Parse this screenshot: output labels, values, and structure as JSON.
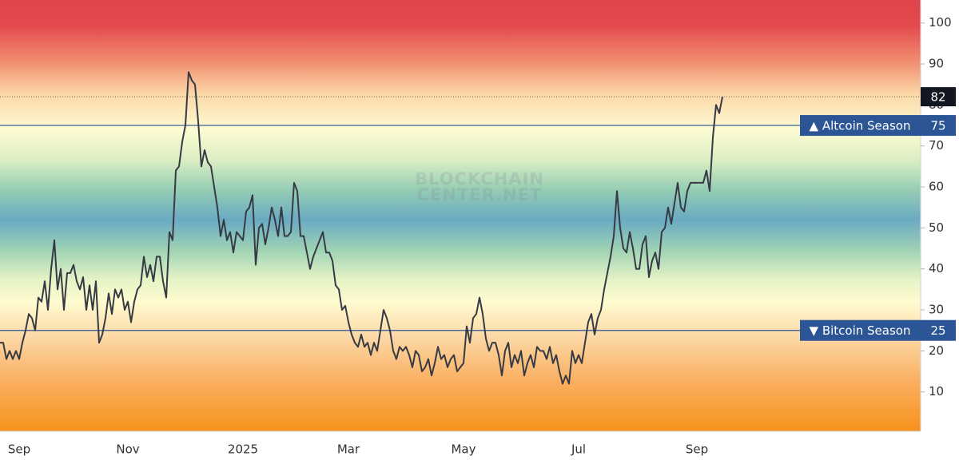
{
  "chart_data": {
    "type": "line",
    "categories": [
      null,
      null,
      null,
      null,
      null,
      null,
      "Sep",
      null,
      null,
      null,
      null,
      null,
      null,
      null,
      null,
      null,
      null,
      null,
      null,
      null,
      null,
      null,
      null,
      null,
      null,
      null,
      null,
      null,
      null,
      null,
      null,
      null,
      null,
      null,
      null,
      null,
      null,
      null,
      null,
      null,
      "Nov",
      null,
      null,
      null,
      null,
      null,
      null,
      null,
      null,
      null,
      null,
      null,
      null,
      null,
      null,
      null,
      null,
      null,
      null,
      null,
      null,
      null,
      null,
      null,
      null,
      null,
      null,
      null,
      null,
      null,
      null,
      null,
      null,
      null,
      null,
      null,
      "2025",
      null,
      null,
      null,
      null,
      null,
      null,
      null,
      null,
      null,
      null,
      null,
      null,
      null,
      null,
      null,
      null,
      null,
      null,
      null,
      null,
      null,
      null,
      null,
      null,
      null,
      null,
      null,
      null,
      null,
      null,
      null,
      null,
      "Mar",
      null,
      null,
      null,
      null,
      null,
      null,
      null,
      null,
      null,
      null,
      null,
      null,
      null,
      null,
      null,
      null,
      null,
      null,
      null,
      null,
      null,
      null,
      null,
      null,
      null,
      null,
      null,
      null,
      null,
      null,
      null,
      null,
      null,
      null,
      null,
      "May",
      null,
      null,
      null,
      null,
      null,
      null,
      null,
      null,
      null,
      null,
      null,
      null,
      null,
      null,
      null,
      null,
      null,
      null,
      null,
      null,
      null,
      null,
      null,
      null,
      null,
      null,
      null,
      null,
      null,
      null,
      null,
      null,
      null,
      null,
      null,
      "Jul",
      null,
      null,
      null,
      null,
      null,
      null,
      null,
      null,
      null,
      null,
      null,
      null,
      null,
      null,
      null,
      null,
      null,
      null,
      null,
      null,
      null,
      null,
      null,
      null,
      null,
      null,
      null,
      null,
      null,
      null,
      null,
      null,
      null,
      null,
      null,
      null,
      "Sep",
      null,
      null,
      null,
      null,
      null,
      null,
      null,
      null
    ],
    "series": [
      {
        "color": "#363a45",
        "values": [
          22,
          22,
          18,
          20,
          18,
          20,
          18,
          22,
          25,
          29,
          28,
          25,
          33,
          32,
          37,
          30,
          40,
          47,
          35,
          40,
          30,
          39,
          39,
          41,
          37,
          35,
          38,
          30,
          36,
          30,
          37,
          22,
          24,
          28,
          34,
          29,
          35,
          33,
          35,
          30,
          32,
          27,
          32,
          35,
          36,
          43,
          38,
          41,
          37,
          43,
          43,
          37,
          33,
          49,
          47,
          64,
          65,
          71,
          75,
          88,
          86,
          85,
          76,
          65,
          69,
          66,
          65,
          60,
          55,
          48,
          52,
          47,
          49,
          44,
          49,
          48,
          47,
          54,
          55,
          58,
          41,
          50,
          51,
          46,
          50,
          55,
          52,
          48,
          55,
          48,
          48,
          49,
          61,
          59,
          48,
          48,
          44,
          40,
          43,
          45,
          47,
          49,
          44,
          44,
          42,
          36,
          35,
          30,
          31,
          27,
          24,
          22,
          21,
          24,
          21,
          22,
          19,
          22,
          20,
          25,
          30,
          28,
          25,
          20,
          18,
          21,
          20,
          21,
          19,
          16,
          20,
          19,
          15,
          16,
          18,
          14,
          17,
          21,
          18,
          19,
          16,
          18,
          19,
          15,
          16,
          17,
          26,
          22,
          28,
          29,
          33,
          29,
          23,
          20,
          22,
          22,
          19,
          14,
          20,
          22,
          16,
          19,
          17,
          20,
          14,
          17,
          19,
          16,
          21,
          20,
          20,
          18,
          21,
          17,
          19,
          15,
          12,
          14,
          12,
          20,
          17,
          19,
          17,
          22,
          27,
          29,
          24,
          28,
          30,
          35,
          39,
          43,
          48,
          59,
          50,
          45,
          44,
          49,
          45,
          40,
          40,
          46,
          48,
          38,
          42,
          44,
          40,
          49,
          50,
          55,
          51,
          56,
          61,
          55,
          54,
          59,
          61,
          61,
          61,
          61,
          61,
          64,
          59,
          72,
          80,
          78,
          82
        ]
      }
    ],
    "ylim": [
      0.4,
      105.6
    ],
    "yticks": [
      10,
      20,
      30,
      40,
      50,
      60,
      70,
      80,
      90,
      100
    ],
    "reference_lines": [
      {
        "value": 75,
        "label": "▲ Altcoin Season",
        "color": "#2c5595"
      },
      {
        "value": 25,
        "label": "▼ Bitcoin Season",
        "color": "#2c5595"
      }
    ],
    "watermark": [
      "BLOCKCHAIN",
      "CENTER.NET"
    ]
  }
}
